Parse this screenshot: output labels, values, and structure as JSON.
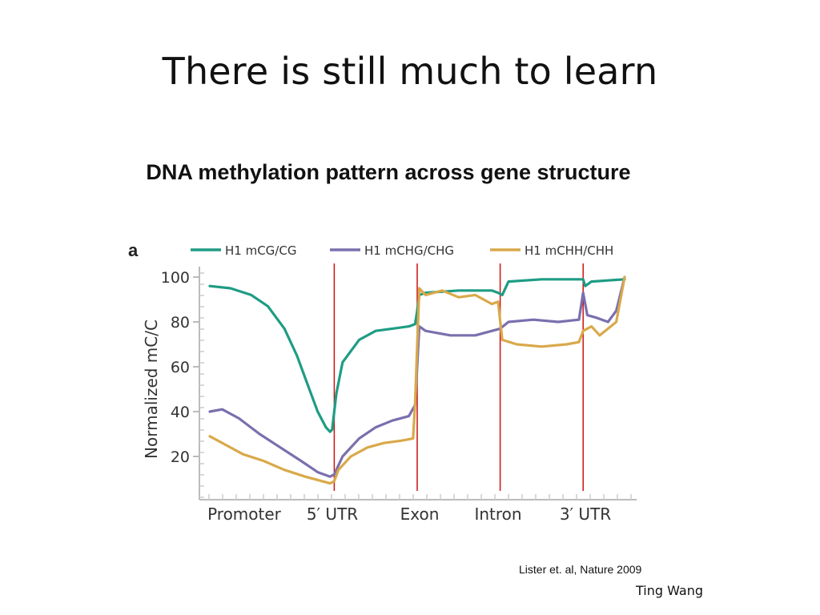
{
  "slide": {
    "title": "There is still much to learn",
    "citation": "Lister et. al, Nature 2009",
    "author": "Ting Wang"
  },
  "chart_data": {
    "type": "line",
    "title": "DNA methylation pattern across gene structure",
    "panel_label": "a",
    "ylabel": "Normalized mC/C",
    "xlabel": "",
    "ylim": [
      0,
      100
    ],
    "yticks": [
      20,
      40,
      60,
      80,
      100
    ],
    "regions": [
      "Promoter",
      "5′ UTR",
      "Exon",
      "Intron",
      "3′ UTR"
    ],
    "region_boundaries": [
      0.3,
      0.5,
      0.7,
      0.9
    ],
    "x_range": [
      0,
      1
    ],
    "grid": false,
    "legend_position": "top",
    "boundary_color": "#cc1111",
    "series": [
      {
        "name": "H1 mCG/CG",
        "color": "#1e9c84",
        "x": [
          0.0,
          0.05,
          0.1,
          0.14,
          0.18,
          0.21,
          0.24,
          0.26,
          0.28,
          0.29,
          0.295,
          0.305,
          0.32,
          0.36,
          0.4,
          0.44,
          0.48,
          0.495,
          0.5,
          0.505,
          0.52,
          0.6,
          0.68,
          0.695,
          0.705,
          0.72,
          0.8,
          0.9,
          0.905,
          0.92,
          1.0
        ],
        "values": [
          96,
          95,
          92,
          87,
          77,
          65,
          50,
          40,
          33,
          31,
          32,
          48,
          62,
          72,
          76,
          77,
          78,
          79,
          85,
          92,
          93,
          94,
          94,
          93,
          92,
          98,
          99,
          99,
          96,
          98,
          99
        ]
      },
      {
        "name": "H1 mCHG/CHG",
        "color": "#7b6fae",
        "x": [
          0.0,
          0.03,
          0.07,
          0.12,
          0.17,
          0.22,
          0.26,
          0.29,
          0.3,
          0.32,
          0.36,
          0.4,
          0.44,
          0.48,
          0.495,
          0.505,
          0.52,
          0.58,
          0.64,
          0.7,
          0.72,
          0.78,
          0.84,
          0.89,
          0.9,
          0.91,
          0.93,
          0.96,
          0.98,
          1.0
        ],
        "values": [
          40,
          41,
          37,
          30,
          24,
          18,
          13,
          11,
          12,
          20,
          28,
          33,
          36,
          38,
          43,
          78,
          76,
          74,
          74,
          77,
          80,
          81,
          80,
          81,
          93,
          83,
          82,
          80,
          85,
          100
        ],
        "tail_note": "series drawn to the top at the right edge"
      },
      {
        "name": "H1 mCHH/CHH",
        "color": "#d9a94a",
        "x": [
          0.0,
          0.04,
          0.08,
          0.13,
          0.18,
          0.23,
          0.27,
          0.29,
          0.3,
          0.31,
          0.34,
          0.38,
          0.42,
          0.46,
          0.49,
          0.495,
          0.505,
          0.52,
          0.56,
          0.6,
          0.64,
          0.68,
          0.695,
          0.705,
          0.74,
          0.8,
          0.86,
          0.89,
          0.9,
          0.92,
          0.94,
          0.96,
          0.98,
          1.0
        ],
        "values": [
          29,
          25,
          21,
          18,
          14,
          11,
          9,
          8,
          9,
          14,
          20,
          24,
          26,
          27,
          28,
          44,
          95,
          92,
          94,
          91,
          92,
          88,
          89,
          72,
          70,
          69,
          70,
          71,
          76,
          78,
          74,
          77,
          80,
          100
        ]
      }
    ]
  }
}
